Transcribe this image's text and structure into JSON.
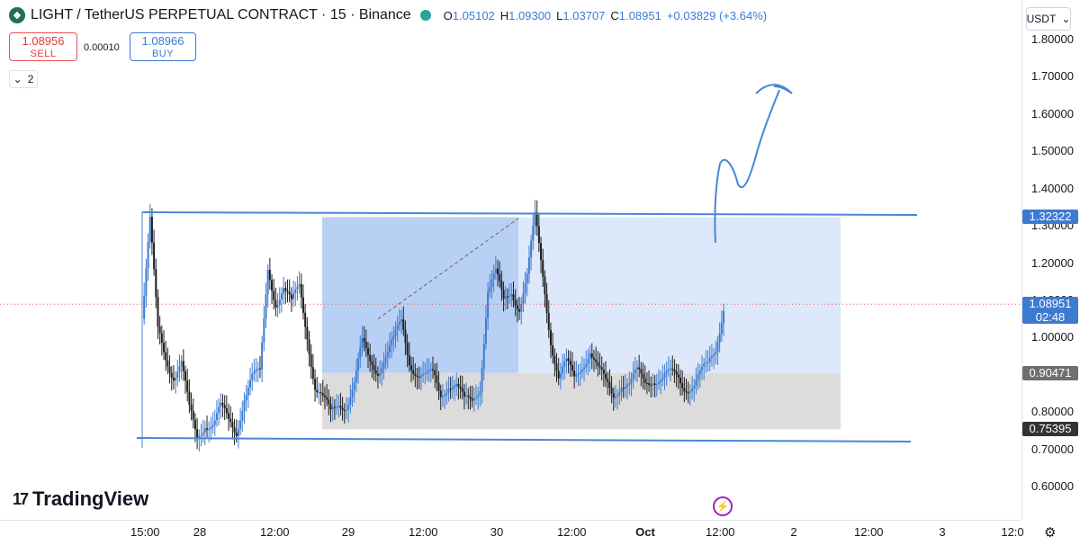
{
  "header": {
    "title": "LIGHT / TetherUS PERPETUAL CONTRACT · 15 · Binance",
    "ohlc": {
      "o_label": "O",
      "o": "1.05102",
      "h_label": "H",
      "h": "1.09300",
      "l_label": "L",
      "l": "1.03707",
      "c_label": "C",
      "c": "1.08951",
      "change": "+0.03829 (+3.64%)"
    }
  },
  "trade": {
    "sell_price": "1.08956",
    "sell_label": "SELL",
    "spread": "0.00010",
    "buy_price": "1.08966",
    "buy_label": "BUY"
  },
  "indicators_count": "2",
  "currency": "USDT",
  "colors": {
    "up": "#3d7bd1",
    "rect_dark": "#b9d0f5",
    "rect_light": "#dde8fb",
    "rect_grey": "#dcdcdc",
    "line": "#4a86d6"
  },
  "brand": "TradingView",
  "chart_data": {
    "type": "candlestick",
    "symbol": "LIGHT / TetherUS PERPETUAL CONTRACT",
    "interval": "15",
    "exchange": "Binance",
    "ylim": [
      0.55,
      1.85
    ],
    "y_ticks": [
      "1.80000",
      "1.70000",
      "1.60000",
      "1.50000",
      "1.40000",
      "1.30000",
      "1.20000",
      "1.10000",
      "1.00000",
      "0.90000",
      "0.80000",
      "0.70000",
      "0.60000"
    ],
    "x_ticks": [
      "15:00",
      "28",
      "12:00",
      "29",
      "12:00",
      "30",
      "12:00",
      "Oct",
      "12:00",
      "2",
      "12:00",
      "3",
      "12:0"
    ],
    "price_tags": [
      {
        "value": "1.32322",
        "color": "#3d7bd1"
      },
      {
        "value": "1.08951",
        "sub": "02:48",
        "color": "#3d7bd1"
      },
      {
        "value": "0.90471",
        "color": "#6f6f6f"
      },
      {
        "value": "0.75395",
        "color": "#333333"
      }
    ],
    "close_path": [
      [
        0,
        1.05
      ],
      [
        2,
        1.3
      ],
      [
        4,
        1.02
      ],
      [
        6,
        0.96
      ],
      [
        8,
        0.9
      ],
      [
        10,
        0.92
      ],
      [
        12,
        0.8
      ],
      [
        14,
        0.74
      ],
      [
        16,
        0.78
      ],
      [
        18,
        0.76
      ],
      [
        20,
        0.8
      ],
      [
        22,
        0.78
      ],
      [
        24,
        0.76
      ],
      [
        26,
        0.84
      ],
      [
        28,
        0.88
      ],
      [
        30,
        0.9
      ],
      [
        32,
        1.2
      ],
      [
        34,
        1.1
      ],
      [
        36,
        1.12
      ],
      [
        38,
        1.08
      ],
      [
        40,
        1.15
      ],
      [
        42,
        1.02
      ],
      [
        44,
        0.86
      ],
      [
        46,
        0.82
      ],
      [
        48,
        0.8
      ],
      [
        50,
        0.84
      ],
      [
        52,
        0.82
      ],
      [
        54,
        0.86
      ],
      [
        56,
        0.98
      ],
      [
        58,
        0.95
      ],
      [
        60,
        0.92
      ],
      [
        62,
        0.94
      ],
      [
        64,
        0.98
      ],
      [
        66,
        1.05
      ],
      [
        68,
        0.95
      ],
      [
        70,
        0.9
      ],
      [
        72,
        0.88
      ],
      [
        74,
        0.9
      ],
      [
        76,
        0.86
      ],
      [
        78,
        0.88
      ],
      [
        80,
        0.86
      ],
      [
        82,
        0.82
      ],
      [
        84,
        0.84
      ],
      [
        86,
        0.88
      ],
      [
        88,
        1.12
      ],
      [
        90,
        1.16
      ],
      [
        92,
        1.1
      ],
      [
        94,
        1.14
      ],
      [
        96,
        1.08
      ],
      [
        98,
        1.15
      ],
      [
        100,
        1.32
      ],
      [
        102,
        1.18
      ],
      [
        104,
        1.0
      ],
      [
        106,
        0.88
      ],
      [
        108,
        0.92
      ],
      [
        110,
        0.9
      ],
      [
        112,
        0.94
      ],
      [
        114,
        0.96
      ],
      [
        116,
        0.9
      ],
      [
        118,
        0.88
      ],
      [
        120,
        0.86
      ],
      [
        122,
        0.88
      ],
      [
        124,
        0.86
      ],
      [
        126,
        0.9
      ],
      [
        128,
        0.89
      ],
      [
        130,
        0.9
      ],
      [
        132,
        0.88
      ],
      [
        134,
        0.89
      ],
      [
        136,
        0.9
      ],
      [
        138,
        0.88
      ],
      [
        140,
        0.87
      ],
      [
        142,
        0.89
      ],
      [
        144,
        0.92
      ],
      [
        146,
        0.98
      ],
      [
        148,
        1.09
      ]
    ],
    "note": ""
  }
}
